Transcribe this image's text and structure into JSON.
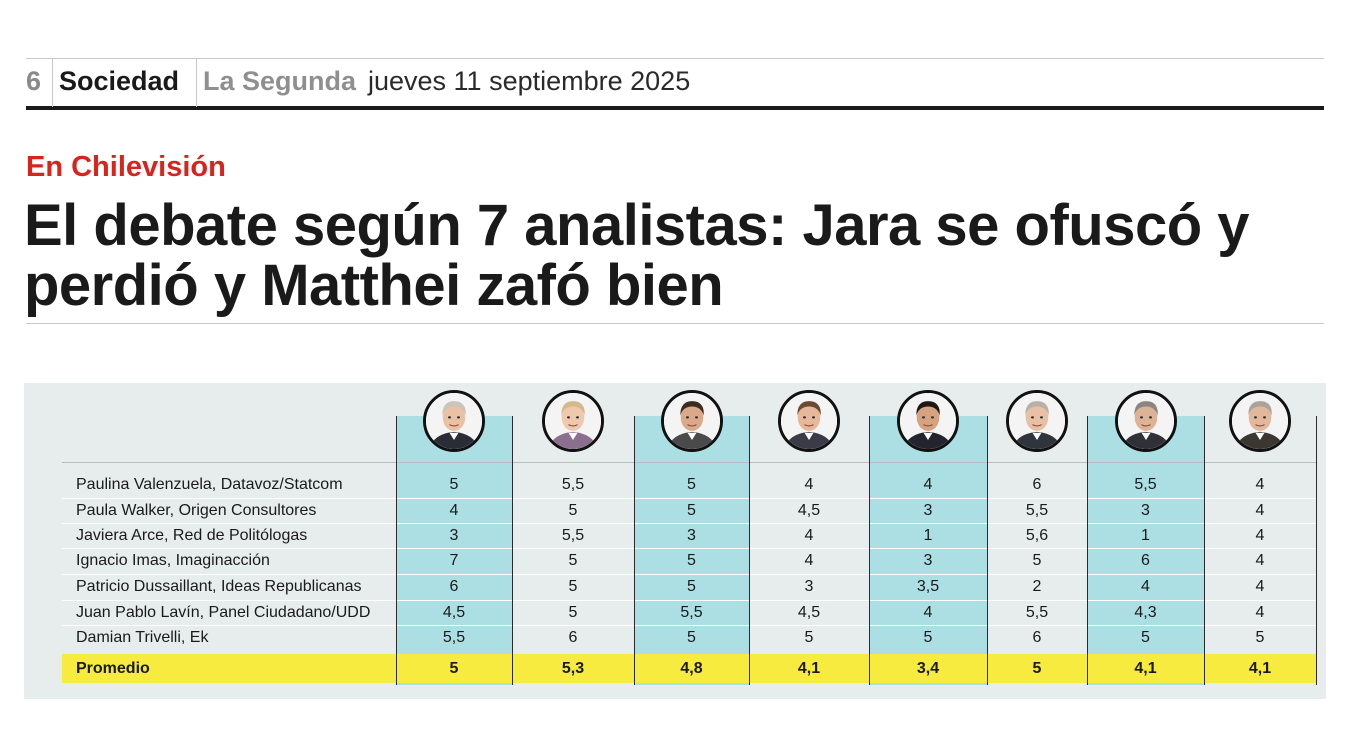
{
  "header": {
    "page_number": "6",
    "section": "Sociedad",
    "publication": "La Segunda",
    "date": "jueves 11 septiembre 2025"
  },
  "kicker": "En Chilevisión",
  "headline": "El debate según 7 analistas: Jara se ofuscó y perdió y Matthei zafó bien",
  "colors": {
    "kicker": "#d9231d",
    "teal_column": "#acdfe3",
    "panel": "#e7ecec",
    "average_row": "#f7eb3f"
  },
  "candidates": [
    {
      "icon": "candidate-portrait-1-icon",
      "highlighted": true
    },
    {
      "icon": "candidate-portrait-2-icon",
      "highlighted": false
    },
    {
      "icon": "candidate-portrait-3-icon",
      "highlighted": true
    },
    {
      "icon": "candidate-portrait-4-icon",
      "highlighted": false
    },
    {
      "icon": "candidate-portrait-5-icon",
      "highlighted": true
    },
    {
      "icon": "candidate-portrait-6-icon",
      "highlighted": false
    },
    {
      "icon": "candidate-portrait-7-icon",
      "highlighted": true
    },
    {
      "icon": "candidate-portrait-8-icon",
      "highlighted": false
    }
  ],
  "rows": [
    {
      "name": "Paulina Valenzuela, Datavoz/Statcom",
      "scores": [
        "5",
        "5,5",
        "5",
        "4",
        "4",
        "6",
        "5,5",
        "4"
      ]
    },
    {
      "name": "Paula Walker, Origen Consultores",
      "scores": [
        "4",
        "5",
        "5",
        "4,5",
        "3",
        "5,5",
        "3",
        "4"
      ]
    },
    {
      "name": "Javiera Arce, Red de Politólogas",
      "scores": [
        "3",
        "5,5",
        "3",
        "4",
        "1",
        "5,6",
        "1",
        "4"
      ]
    },
    {
      "name": "Ignacio Imas, Imaginacción",
      "scores": [
        "7",
        "5",
        "5",
        "4",
        "3",
        "5",
        "6",
        "4"
      ]
    },
    {
      "name": "Patricio Dussaillant, Ideas Republicanas",
      "scores": [
        "6",
        "5",
        "5",
        "3",
        "3,5",
        "2",
        "4",
        "4"
      ]
    },
    {
      "name": "Juan Pablo Lavín, Panel Ciudadano/UDD",
      "scores": [
        "4,5",
        "5",
        "5,5",
        "4,5",
        "4",
        "5,5",
        "4,3",
        "4"
      ]
    },
    {
      "name": "Damian Trivelli, Ek",
      "scores": [
        "5,5",
        "6",
        "5",
        "5",
        "5",
        "6",
        "5",
        "5"
      ]
    }
  ],
  "average": {
    "label": "Promedio",
    "scores": [
      "5",
      "5,3",
      "4,8",
      "4,1",
      "3,4",
      "5",
      "4,1",
      "4,1"
    ]
  }
}
